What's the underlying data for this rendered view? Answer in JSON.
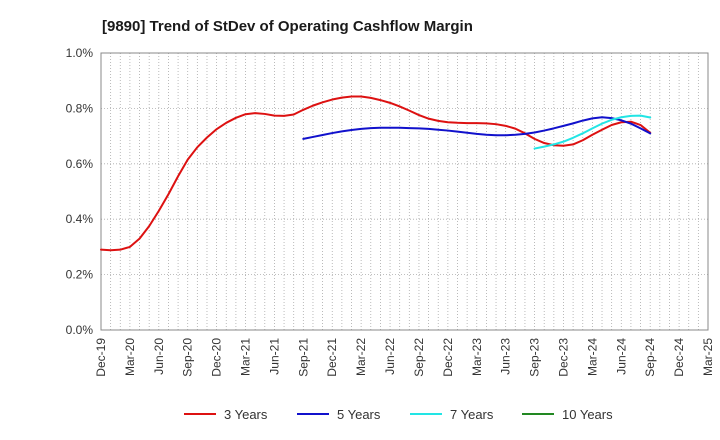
{
  "chart_data": {
    "type": "line",
    "title": "[9890]  Trend of StDev of Operating Cashflow Margin",
    "xlabel": "",
    "ylabel": "",
    "ylim": [
      0,
      1.0
    ],
    "yticks": [
      {
        "value": 0.0,
        "label": "0.0%"
      },
      {
        "value": 0.2,
        "label": "0.2%"
      },
      {
        "value": 0.4,
        "label": "0.4%"
      },
      {
        "value": 0.6,
        "label": "0.6%"
      },
      {
        "value": 0.8,
        "label": "0.8%"
      },
      {
        "value": 1.0,
        "label": "1.0%"
      }
    ],
    "xlim": [
      "2019-12",
      "2025-03"
    ],
    "xticks": [
      "Dec-19",
      "Mar-20",
      "Jun-20",
      "Sep-20",
      "Dec-20",
      "Mar-21",
      "Jun-21",
      "Sep-21",
      "Dec-21",
      "Mar-22",
      "Jun-22",
      "Sep-22",
      "Dec-22",
      "Mar-23",
      "Jun-23",
      "Sep-23",
      "Dec-23",
      "Mar-24",
      "Jun-24",
      "Sep-24",
      "Dec-24",
      "Mar-25"
    ],
    "grid": true,
    "legend_position": "bottom",
    "series": [
      {
        "name": "3 Years",
        "color": "#dd1111",
        "points": [
          [
            "2019-12",
            0.29
          ],
          [
            "2020-01",
            0.288
          ],
          [
            "2020-02",
            0.29
          ],
          [
            "2020-03",
            0.3
          ],
          [
            "2020-04",
            0.33
          ],
          [
            "2020-05",
            0.375
          ],
          [
            "2020-06",
            0.43
          ],
          [
            "2020-07",
            0.49
          ],
          [
            "2020-08",
            0.555
          ],
          [
            "2020-09",
            0.615
          ],
          [
            "2020-10",
            0.66
          ],
          [
            "2020-11",
            0.695
          ],
          [
            "2020-12",
            0.725
          ],
          [
            "2021-01",
            0.748
          ],
          [
            "2021-02",
            0.766
          ],
          [
            "2021-03",
            0.779
          ],
          [
            "2021-04",
            0.783
          ],
          [
            "2021-05",
            0.78
          ],
          [
            "2021-06",
            0.774
          ],
          [
            "2021-07",
            0.773
          ],
          [
            "2021-08",
            0.778
          ],
          [
            "2021-09",
            0.795
          ],
          [
            "2021-10",
            0.81
          ],
          [
            "2021-11",
            0.822
          ],
          [
            "2021-12",
            0.832
          ],
          [
            "2022-01",
            0.839
          ],
          [
            "2022-02",
            0.843
          ],
          [
            "2022-03",
            0.843
          ],
          [
            "2022-04",
            0.838
          ],
          [
            "2022-05",
            0.83
          ],
          [
            "2022-06",
            0.82
          ],
          [
            "2022-07",
            0.807
          ],
          [
            "2022-08",
            0.792
          ],
          [
            "2022-09",
            0.776
          ],
          [
            "2022-10",
            0.763
          ],
          [
            "2022-11",
            0.755
          ],
          [
            "2022-12",
            0.75
          ],
          [
            "2023-01",
            0.748
          ],
          [
            "2023-02",
            0.747
          ],
          [
            "2023-03",
            0.747
          ],
          [
            "2023-04",
            0.746
          ],
          [
            "2023-05",
            0.743
          ],
          [
            "2023-06",
            0.737
          ],
          [
            "2023-07",
            0.727
          ],
          [
            "2023-08",
            0.71
          ],
          [
            "2023-09",
            0.69
          ],
          [
            "2023-10",
            0.675
          ],
          [
            "2023-11",
            0.667
          ],
          [
            "2023-12",
            0.665
          ],
          [
            "2024-01",
            0.67
          ],
          [
            "2024-02",
            0.685
          ],
          [
            "2024-03",
            0.705
          ],
          [
            "2024-04",
            0.723
          ],
          [
            "2024-05",
            0.74
          ],
          [
            "2024-06",
            0.75
          ],
          [
            "2024-07",
            0.752
          ],
          [
            "2024-08",
            0.74
          ],
          [
            "2024-09",
            0.712
          ]
        ]
      },
      {
        "name": "5 Years",
        "color": "#1111cc",
        "points": [
          [
            "2021-09",
            0.69
          ],
          [
            "2021-10",
            0.697
          ],
          [
            "2021-11",
            0.704
          ],
          [
            "2021-12",
            0.711
          ],
          [
            "2022-01",
            0.717
          ],
          [
            "2022-02",
            0.722
          ],
          [
            "2022-03",
            0.726
          ],
          [
            "2022-04",
            0.729
          ],
          [
            "2022-05",
            0.73
          ],
          [
            "2022-06",
            0.73
          ],
          [
            "2022-07",
            0.73
          ],
          [
            "2022-08",
            0.729
          ],
          [
            "2022-09",
            0.728
          ],
          [
            "2022-10",
            0.726
          ],
          [
            "2022-11",
            0.723
          ],
          [
            "2022-12",
            0.72
          ],
          [
            "2023-01",
            0.716
          ],
          [
            "2023-02",
            0.712
          ],
          [
            "2023-03",
            0.708
          ],
          [
            "2023-04",
            0.705
          ],
          [
            "2023-05",
            0.703
          ],
          [
            "2023-06",
            0.703
          ],
          [
            "2023-07",
            0.705
          ],
          [
            "2023-08",
            0.708
          ],
          [
            "2023-09",
            0.713
          ],
          [
            "2023-10",
            0.72
          ],
          [
            "2023-11",
            0.728
          ],
          [
            "2023-12",
            0.737
          ],
          [
            "2024-01",
            0.746
          ],
          [
            "2024-02",
            0.756
          ],
          [
            "2024-03",
            0.764
          ],
          [
            "2024-04",
            0.768
          ],
          [
            "2024-05",
            0.765
          ],
          [
            "2024-06",
            0.757
          ],
          [
            "2024-07",
            0.745
          ],
          [
            "2024-08",
            0.728
          ],
          [
            "2024-09",
            0.71
          ]
        ]
      },
      {
        "name": "7 Years",
        "color": "#22e5e5",
        "points": [
          [
            "2023-09",
            0.655
          ],
          [
            "2023-10",
            0.662
          ],
          [
            "2023-11",
            0.67
          ],
          [
            "2023-12",
            0.68
          ],
          [
            "2024-01",
            0.694
          ],
          [
            "2024-02",
            0.71
          ],
          [
            "2024-03",
            0.728
          ],
          [
            "2024-04",
            0.745
          ],
          [
            "2024-05",
            0.759
          ],
          [
            "2024-06",
            0.768
          ],
          [
            "2024-07",
            0.773
          ],
          [
            "2024-08",
            0.774
          ],
          [
            "2024-09",
            0.767
          ]
        ]
      },
      {
        "name": "10 Years",
        "color": "#228822",
        "points": []
      }
    ]
  }
}
